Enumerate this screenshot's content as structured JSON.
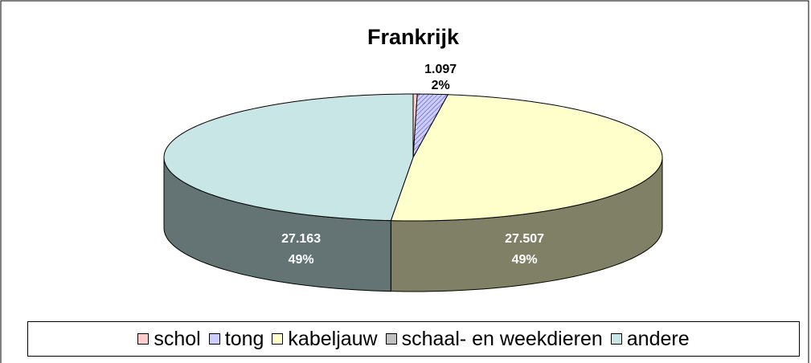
{
  "chart_data": {
    "type": "pie3d",
    "title": "Frankrijk",
    "categories": [
      "schol",
      "tong",
      "kabeljauw",
      "schaal- en weekdieren",
      "andere"
    ],
    "values": [
      0.15,
      1.097,
      27.507,
      0,
      27.163
    ],
    "percent_labels": [
      null,
      "2%",
      "49%",
      null,
      "49%"
    ],
    "colors": [
      "#ffcccc",
      "#ccccff",
      "#ffffcc",
      "#c0c0c0",
      "#c8e6e6"
    ],
    "legend": "bottom"
  }
}
